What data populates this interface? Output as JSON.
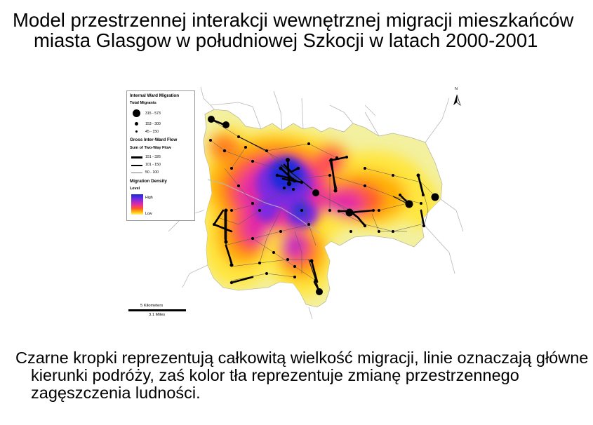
{
  "title": "Model przestrzennej interakcji wewnętrznej migracji mieszkańców miasta Glasgow w południowej Szkocji w latach 2000-2001",
  "caption": "Czarne kropki reprezentują całkowitą wielkość migracji, linie oznaczają główne kierunki podróży, zaś kolor tła reprezentuje zmianę przestrzennego zagęszczenia ludności.",
  "map": {
    "north_label": "N",
    "north_icon": "north-arrow-icon",
    "colors": {
      "high": "#1a2ad9",
      "mid_high": "#7a2ae0",
      "mid": "#e32ba6",
      "mid_low": "#ff5a2a",
      "low_mid": "#ffb400",
      "low": "#fff27a",
      "background": "#f3f0a0"
    }
  },
  "legend": {
    "title": "Internal Ward Migration",
    "total_migrants": {
      "label": "Total Migrants",
      "classes": [
        "315 - 573",
        "153 - 300",
        "45 - 150"
      ]
    },
    "flow": {
      "label": "Gross Inter-Ward Flow",
      "sublabel": "Sum of Two-Way Flow",
      "classes": [
        "151 - 326",
        "101 - 150",
        "50 - 100"
      ]
    },
    "density": {
      "label": "Migration Density",
      "sublabel": "Level",
      "high": "High",
      "low": "Low"
    }
  },
  "scale": {
    "km": "5 Kilometers",
    "miles": "3.1 Miles"
  }
}
